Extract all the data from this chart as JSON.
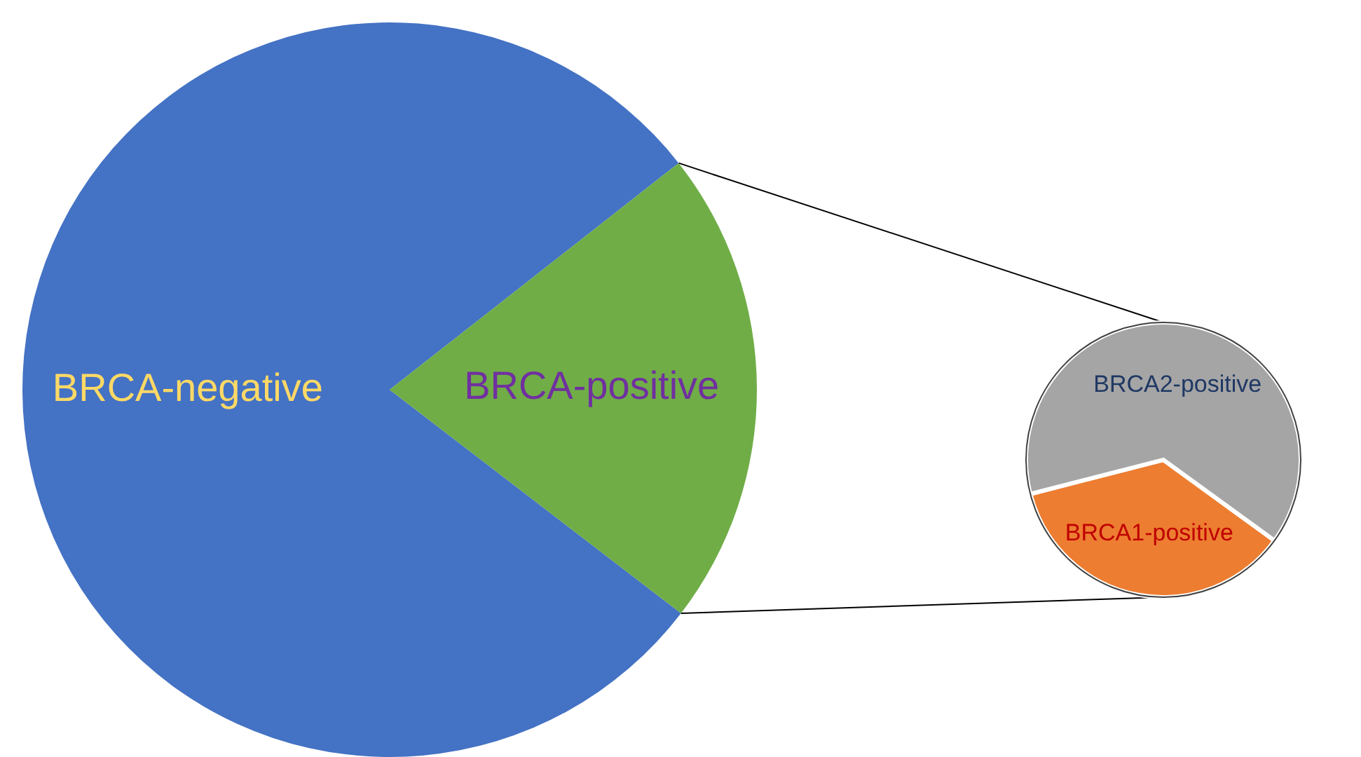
{
  "chart_data": [
    {
      "type": "pie",
      "categories": [
        "BRCA-negative",
        "BRCA-positive"
      ],
      "values": [
        79,
        21
      ],
      "colors": [
        "#4472c4",
        "#70ad47"
      ]
    },
    {
      "type": "pie",
      "categories": [
        "BRCA1-positive",
        "BRCA2-positive"
      ],
      "values": [
        36,
        64
      ],
      "colors": [
        "#ed7d31",
        "#a5a5a5"
      ]
    }
  ]
}
